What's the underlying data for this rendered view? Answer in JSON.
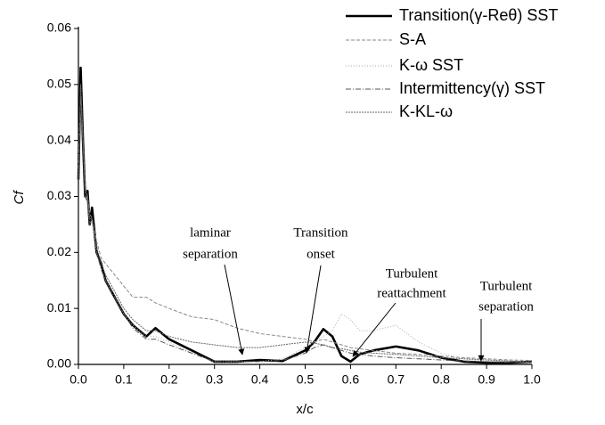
{
  "chart_data": {
    "type": "line",
    "xlabel": "x/c",
    "ylabel": "Cf",
    "x": [
      0,
      0.005,
      0.01,
      0.015,
      0.02,
      0.025,
      0.03,
      0.04,
      0.05,
      0.06,
      0.08,
      0.1,
      0.12,
      0.15,
      0.17,
      0.2,
      0.25,
      0.3,
      0.35,
      0.4,
      0.45,
      0.5,
      0.52,
      0.54,
      0.56,
      0.58,
      0.6,
      0.62,
      0.65,
      0.7,
      0.75,
      0.8,
      0.85,
      0.9,
      0.95,
      1.0
    ],
    "series": [
      {
        "name": "Transition(γ-Reθ) SST",
        "color": "#000000",
        "width": 2.6,
        "dash": "none",
        "values": [
          0.033,
          0.053,
          0.04,
          0.03,
          0.031,
          0.025,
          0.028,
          0.02,
          0.018,
          0.015,
          0.012,
          0.009,
          0.007,
          0.005,
          0.0065,
          0.0045,
          0.0025,
          0.0005,
          0.0005,
          0.0008,
          0.0006,
          0.0025,
          0.004,
          0.0063,
          0.005,
          0.0015,
          0.0005,
          0.0018,
          0.0025,
          0.0032,
          0.0025,
          0.0012,
          0.0005,
          0.0003,
          0.0003,
          0.0005
        ]
      },
      {
        "name": "S-A",
        "color": "#888888",
        "width": 1,
        "dash": "4,2",
        "values": [
          0.035,
          0.048,
          0.04,
          0.032,
          0.03,
          0.027,
          0.026,
          0.022,
          0.019,
          0.018,
          0.016,
          0.014,
          0.012,
          0.012,
          0.011,
          0.01,
          0.0085,
          0.008,
          0.0065,
          0.0055,
          0.005,
          0.0045,
          0.004,
          0.0045,
          0.004,
          0.0035,
          0.003,
          0.0028,
          0.0025,
          0.002,
          0.0018,
          0.0015,
          0.0012,
          0.001,
          0.0008,
          0.0007
        ]
      },
      {
        "name": "K-ω SST",
        "color": "#aaaaaa",
        "width": 1,
        "dash": "1,2",
        "values": [
          0.033,
          0.05,
          0.04,
          0.03,
          0.029,
          0.025,
          0.026,
          0.02,
          0.017,
          0.015,
          0.012,
          0.009,
          0.007,
          0.005,
          0.005,
          0.004,
          0.002,
          0.0005,
          0.0005,
          0.0005,
          0.001,
          0.003,
          0.004,
          0.005,
          0.006,
          0.009,
          0.008,
          0.006,
          0.006,
          0.007,
          0.004,
          0.002,
          0.001,
          0.0005,
          0.0004,
          0.0004
        ]
      },
      {
        "name": "Intermittency(γ) SST",
        "color": "#555555",
        "width": 1,
        "dash": "6,2,1,2",
        "values": [
          0.033,
          0.05,
          0.04,
          0.03,
          0.029,
          0.025,
          0.026,
          0.02,
          0.017,
          0.015,
          0.012,
          0.009,
          0.0065,
          0.0045,
          0.0045,
          0.0035,
          0.002,
          0.0005,
          0.0005,
          0.0005,
          0.0007,
          0.002,
          0.003,
          0.0035,
          0.003,
          0.0025,
          0.002,
          0.0018,
          0.0015,
          0.0012,
          0.001,
          0.0008,
          0.0006,
          0.0005,
          0.0004,
          0.0004
        ]
      },
      {
        "name": "K-KL-ω",
        "color": "#666666",
        "width": 1,
        "dash": "2,1",
        "values": [
          0.033,
          0.05,
          0.04,
          0.031,
          0.03,
          0.026,
          0.026,
          0.021,
          0.018,
          0.016,
          0.013,
          0.01,
          0.008,
          0.006,
          0.006,
          0.005,
          0.004,
          0.0035,
          0.003,
          0.003,
          0.0035,
          0.004,
          0.0038,
          0.0035,
          0.003,
          0.0028,
          0.0025,
          0.0022,
          0.002,
          0.0018,
          0.0015,
          0.0012,
          0.001,
          0.0008,
          0.0006,
          0.0005
        ]
      }
    ],
    "xlim": [
      0,
      1
    ],
    "ylim": [
      0,
      0.06
    ],
    "xticks": [
      {
        "value": 0,
        "label": "0.0"
      },
      0.1,
      0.2,
      0.3,
      0.4,
      0.5,
      0.6,
      0.7,
      0.8,
      0.9,
      {
        "value": 1,
        "label": "1.0"
      }
    ],
    "yticks": [
      {
        "value": 0,
        "label": "0.00"
      },
      {
        "value": 0.01,
        "label": "0.01"
      },
      {
        "value": 0.02,
        "label": "0.02"
      },
      {
        "value": 0.03,
        "label": "0.03"
      },
      {
        "value": 0.04,
        "label": "0.04"
      },
      {
        "value": 0.05,
        "label": "0.05"
      },
      {
        "value": 0.06,
        "label": "0.06"
      }
    ],
    "legend": "upper right",
    "annotations": [
      {
        "lines": [
          "laminar",
          "separation"
        ]
      },
      {
        "lines": [
          "Transition",
          "onset"
        ]
      },
      {
        "lines": [
          "Turbulent",
          "reattachment"
        ]
      },
      {
        "lines": [
          "Turbulent",
          "separation"
        ]
      }
    ]
  }
}
